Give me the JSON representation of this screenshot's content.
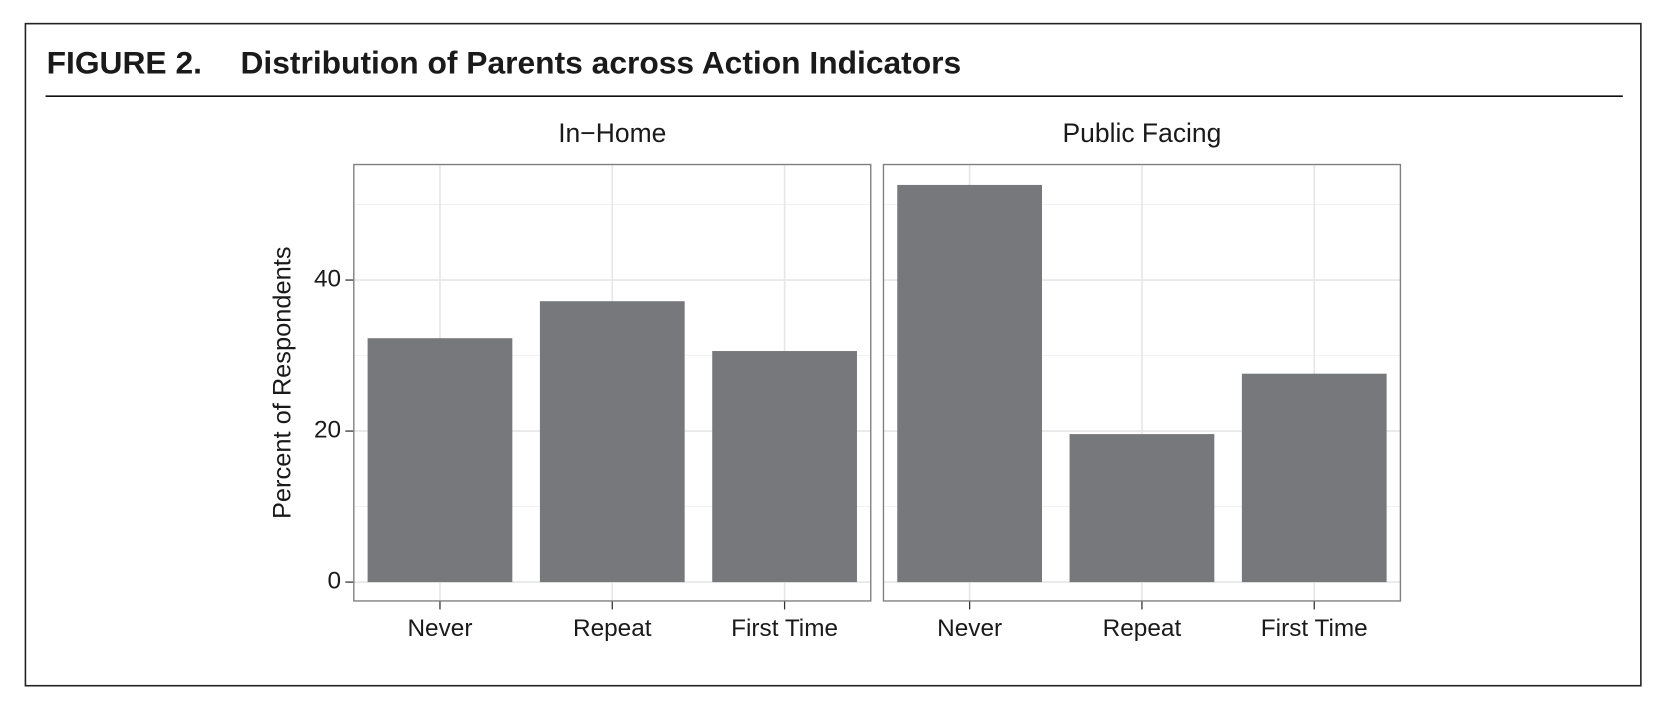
{
  "figure_label": "FIGURE 2.",
  "figure_title": "Distribution of Parents across Action Indicators",
  "y_label": "Percent of Respondents",
  "chart_data": [
    {
      "type": "bar",
      "title": "In−Home",
      "categories": [
        "Never",
        "Repeat",
        "First Time"
      ],
      "values": [
        32.3,
        37.2,
        30.6
      ],
      "color": "#77787c",
      "ylim": [
        -2.5,
        55.3
      ],
      "yticks": [
        0,
        20,
        40
      ],
      "minor_grid": [
        10,
        30,
        50
      ],
      "grid": true,
      "show_ytick_labels": true
    },
    {
      "type": "bar",
      "title": "Public Facing",
      "categories": [
        "Never",
        "Repeat",
        "First Time"
      ],
      "values": [
        52.6,
        19.6,
        27.6
      ],
      "color": "#77787c",
      "ylim": [
        -2.5,
        55.3
      ],
      "yticks": [
        0,
        20,
        40
      ],
      "minor_grid": [
        10,
        30,
        50
      ],
      "grid": true,
      "show_ytick_labels": false
    }
  ]
}
